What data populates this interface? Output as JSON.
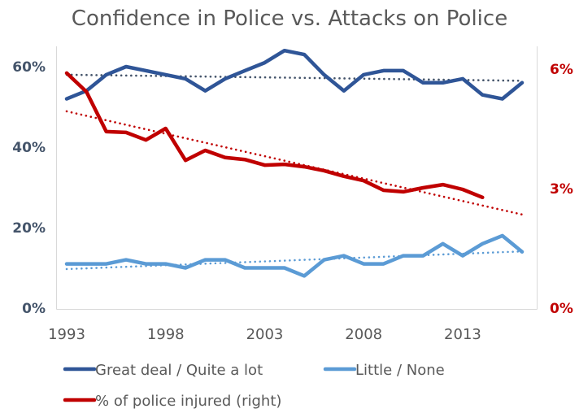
{
  "chart_data": {
    "type": "line",
    "title": "Confidence in Police vs. Attacks on Police",
    "xlabel": "",
    "ylabel": "",
    "y2label": "",
    "x": [
      1993,
      1994,
      1995,
      1996,
      1997,
      1998,
      1999,
      2000,
      2001,
      2002,
      2003,
      2004,
      2005,
      2006,
      2007,
      2008,
      2009,
      2010,
      2011,
      2012,
      2013,
      2014,
      2015,
      2016
    ],
    "xticks": [
      "1993",
      "1998",
      "2003",
      "2008",
      "2013"
    ],
    "xtick_values": [
      1993,
      1998,
      2003,
      2008,
      2013
    ],
    "ylim": [
      0,
      60
    ],
    "yticks": [
      "0%",
      "20%",
      "40%",
      "60%"
    ],
    "ytick_values": [
      0,
      20,
      40,
      60
    ],
    "y2lim": [
      0,
      6
    ],
    "y2ticks": [
      "0%",
      "3%",
      "6%"
    ],
    "y2tick_values": [
      0,
      3,
      6
    ],
    "grid": false,
    "legend_position": "bottom",
    "series": [
      {
        "name": "Great deal / Quite a lot",
        "axis": "left",
        "color": "#2f5597",
        "values": [
          52,
          54,
          58,
          60,
          59,
          58,
          57,
          54,
          57,
          59,
          61,
          64,
          63,
          58,
          54,
          58,
          59,
          59,
          56,
          56,
          57,
          53,
          52,
          56
        ],
        "trendline": {
          "type": "linear",
          "start": 58.0,
          "end": 56.5
        }
      },
      {
        "name": "Little / None",
        "axis": "left",
        "color": "#5b9bd5",
        "values": [
          11,
          11,
          11,
          12,
          11,
          11,
          10,
          12,
          12,
          10,
          10,
          10,
          8,
          12,
          13,
          11,
          11,
          13,
          13,
          16,
          13,
          16,
          18,
          14
        ],
        "trendline": {
          "type": "linear",
          "start": 9.7,
          "end": 14.1
        }
      },
      {
        "name": "% of police injured (right)",
        "axis": "right",
        "color": "#c00000",
        "values": [
          5.9,
          5.43,
          4.43,
          4.41,
          4.22,
          4.51,
          3.71,
          3.96,
          3.78,
          3.73,
          3.59,
          3.61,
          3.55,
          3.45,
          3.31,
          3.2,
          2.96,
          2.92,
          3.02,
          3.1,
          2.98,
          2.78,
          null,
          null
        ],
        "trendline": {
          "type": "linear",
          "start": 4.94,
          "end": 2.35
        }
      }
    ]
  }
}
